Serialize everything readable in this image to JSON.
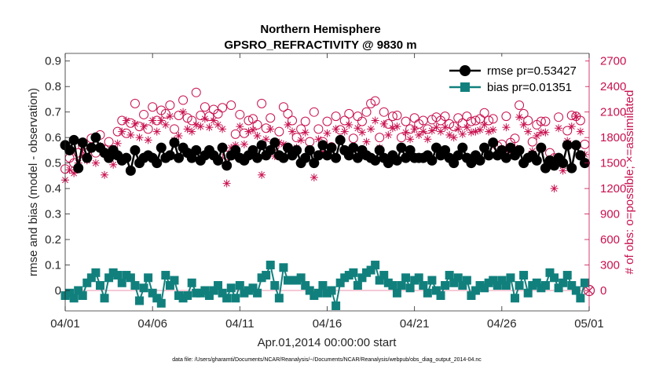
{
  "chart_data": {
    "type": "line",
    "title": "Northern Hemisphere",
    "subtitle": "GPSRO_REFRACTIVITY @ 9830 m",
    "xlabel": "Apr.01,2014 00:00:00 start",
    "ylabel": "rmse and bias (model - observation)",
    "y2label": "# of obs: o=possible; ×=assimilated",
    "footnote": "data file: /Users/gharamti/Documents/NCAR/Reanalysis/~/Documents/NCAR/Reanalysis/webpub/obs_diag_output_2014-04.nc",
    "xlim": [
      0,
      30
    ],
    "ylim": [
      -0.08,
      0.93
    ],
    "y2lim": [
      -240,
      2790
    ],
    "x_ticks": [
      0,
      5,
      10,
      15,
      20,
      25,
      30
    ],
    "x_tick_labels": [
      "04/01",
      "04/06",
      "04/11",
      "04/16",
      "04/21",
      "04/26",
      "05/01"
    ],
    "y_ticks": [
      0,
      0.1,
      0.2,
      0.3,
      0.4,
      0.5,
      0.6,
      0.7,
      0.8,
      0.9
    ],
    "y_tick_labels": [
      "0",
      "0.1",
      "0.2",
      "0.3",
      "0.4",
      "0.5",
      "0.6",
      "0.7",
      "0.8",
      "0.9"
    ],
    "y2_ticks": [
      0,
      300,
      600,
      900,
      1200,
      1500,
      1800,
      2100,
      2400,
      2700
    ],
    "y2_tick_labels": [
      "0",
      "300",
      "600",
      "900",
      "1200",
      "1500",
      "1800",
      "2100",
      "2400",
      "2700"
    ],
    "colors": {
      "rmse": "#000000",
      "bias": "#11807d",
      "obs": "#c8104f",
      "zero_line": "#f0b8c8"
    },
    "series": [
      {
        "name": "rmse",
        "legend": "rmse pr=0.53427",
        "x": [
          0,
          0.25,
          0.5,
          0.75,
          1,
          1.25,
          1.5,
          1.75,
          2,
          2.25,
          2.5,
          2.75,
          3,
          3.25,
          3.5,
          3.75,
          4,
          4.25,
          4.5,
          4.75,
          5,
          5.25,
          5.5,
          5.75,
          6,
          6.25,
          6.5,
          6.75,
          7,
          7.25,
          7.5,
          7.75,
          8,
          8.25,
          8.5,
          8.75,
          9,
          9.25,
          9.5,
          9.75,
          10,
          10.25,
          10.5,
          10.75,
          11,
          11.25,
          11.5,
          11.75,
          12,
          12.25,
          12.5,
          12.75,
          13,
          13.25,
          13.5,
          13.75,
          14,
          14.25,
          14.5,
          14.75,
          15,
          15.25,
          15.5,
          15.75,
          16,
          16.25,
          16.5,
          16.75,
          17,
          17.25,
          17.5,
          17.75,
          18,
          18.25,
          18.5,
          18.75,
          19,
          19.25,
          19.5,
          19.75,
          20,
          20.25,
          20.5,
          20.75,
          21,
          21.25,
          21.5,
          21.75,
          22,
          22.25,
          22.5,
          22.75,
          23,
          23.25,
          23.5,
          23.75,
          24,
          24.25,
          24.5,
          24.75,
          25,
          25.25,
          25.5,
          25.75,
          26,
          26.25,
          26.5,
          26.75,
          27,
          27.25,
          27.5,
          27.75,
          28,
          28.25,
          28.5,
          28.75,
          29,
          29.25,
          29.5,
          29.75
        ],
        "values": [
          0.57,
          0.55,
          0.59,
          0.48,
          0.58,
          0.52,
          0.56,
          0.6,
          0.56,
          0.54,
          0.52,
          0.55,
          0.53,
          0.51,
          0.52,
          0.47,
          0.55,
          0.5,
          0.52,
          0.53,
          0.52,
          0.5,
          0.56,
          0.52,
          0.53,
          0.58,
          0.52,
          0.56,
          0.54,
          0.52,
          0.55,
          0.51,
          0.53,
          0.55,
          0.53,
          0.51,
          0.56,
          0.49,
          0.53,
          0.55,
          0.52,
          0.51,
          0.53,
          0.55,
          0.52,
          0.57,
          0.53,
          0.55,
          0.58,
          0.53,
          0.52,
          0.56,
          0.53,
          0.55,
          0.5,
          0.52,
          0.55,
          0.5,
          0.53,
          0.57,
          0.53,
          0.56,
          0.52,
          0.59,
          0.55,
          0.53,
          0.56,
          0.52,
          0.55,
          0.53,
          0.52,
          0.51,
          0.55,
          0.52,
          0.5,
          0.53,
          0.51,
          0.56,
          0.52,
          0.55,
          0.52,
          0.52,
          0.52,
          0.53,
          0.51,
          0.56,
          0.53,
          0.55,
          0.52,
          0.5,
          0.53,
          0.56,
          0.52,
          0.5,
          0.53,
          0.51,
          0.56,
          0.53,
          0.58,
          0.53,
          0.55,
          0.52,
          0.56,
          0.53,
          0.55,
          0.5,
          0.52,
          0.53,
          0.51,
          0.56,
          0.48,
          0.51,
          0.49,
          0.52,
          0.5,
          0.57,
          0.48,
          0.57,
          0.53,
          0.5
        ]
      },
      {
        "name": "bias",
        "legend": "bias pr=0.01351",
        "x": [
          0,
          0.25,
          0.5,
          0.75,
          1,
          1.25,
          1.5,
          1.75,
          2,
          2.25,
          2.5,
          2.75,
          3,
          3.25,
          3.5,
          3.75,
          4,
          4.25,
          4.5,
          4.75,
          5,
          5.25,
          5.5,
          5.75,
          6,
          6.25,
          6.5,
          6.75,
          7,
          7.25,
          7.5,
          7.75,
          8,
          8.25,
          8.5,
          8.75,
          9,
          9.25,
          9.5,
          9.75,
          10,
          10.25,
          10.5,
          10.75,
          11,
          11.25,
          11.5,
          11.75,
          12,
          12.25,
          12.5,
          12.75,
          13,
          13.25,
          13.5,
          13.75,
          14,
          14.25,
          14.5,
          14.75,
          15,
          15.25,
          15.5,
          15.75,
          16,
          16.25,
          16.5,
          16.75,
          17,
          17.25,
          17.5,
          17.75,
          18,
          18.25,
          18.5,
          18.75,
          19,
          19.25,
          19.5,
          19.75,
          20,
          20.25,
          20.5,
          20.75,
          21,
          21.25,
          21.5,
          21.75,
          22,
          22.25,
          22.5,
          22.75,
          23,
          23.25,
          23.5,
          23.75,
          24,
          24.25,
          24.5,
          24.75,
          25,
          25.25,
          25.5,
          25.75,
          26,
          26.25,
          26.5,
          26.75,
          27,
          27.25,
          27.5,
          27.75,
          28,
          28.25,
          28.5,
          28.75,
          29,
          29.25,
          29.5,
          29.75
        ],
        "values": [
          -0.02,
          -0.01,
          -0.03,
          0.0,
          -0.02,
          0.03,
          0.05,
          0.07,
          0.02,
          -0.03,
          0.05,
          0.07,
          0.06,
          0.03,
          0.06,
          0.05,
          0.02,
          -0.04,
          0.01,
          0.05,
          -0.01,
          -0.03,
          -0.05,
          0.06,
          0.02,
          0.04,
          -0.02,
          -0.03,
          -0.02,
          0.03,
          -0.01,
          -0.01,
          0.0,
          -0.02,
          0.0,
          0.02,
          -0.01,
          -0.03,
          0.01,
          -0.03,
          0.02,
          -0.01,
          0.0,
          0.01,
          -0.01,
          0.05,
          0.06,
          0.1,
          0.02,
          -0.03,
          0.09,
          0.04,
          0.04,
          0.04,
          0.05,
          0.02,
          0.0,
          -0.02,
          -0.01,
          0.02,
          -0.01,
          0.0,
          -0.06,
          0.03,
          0.05,
          0.06,
          0.07,
          0.02,
          0.05,
          0.07,
          0.08,
          0.1,
          0.04,
          0.06,
          0.03,
          0.02,
          -0.01,
          0.02,
          0.05,
          0.01,
          0.04,
          0.05,
          0.02,
          -0.01,
          0.04,
          0.0,
          -0.02,
          0.02,
          0.06,
          0.03,
          0.05,
          0.02,
          0.04,
          -0.02,
          0.0,
          0.02,
          0.01,
          0.03,
          0.04,
          0.02,
          0.04,
          0.02,
          0.05,
          -0.03,
          0.02,
          0.06,
          -0.01,
          0.02,
          0.03,
          0.01,
          0.02,
          0.07,
          0.05,
          0.01,
          0.03,
          0.06,
          0.02,
          0.0,
          -0.03,
          0.03
        ]
      },
      {
        "name": "obs_possible",
        "legend": "o=possible",
        "x": [
          0,
          0.25,
          0.5,
          0.75,
          1,
          1.25,
          1.5,
          1.75,
          2,
          2.25,
          2.5,
          2.75,
          3,
          3.25,
          3.5,
          3.75,
          4,
          4.25,
          4.5,
          4.75,
          5,
          5.25,
          5.5,
          5.75,
          6,
          6.25,
          6.5,
          6.75,
          7,
          7.25,
          7.5,
          7.75,
          8,
          8.25,
          8.5,
          8.75,
          9,
          9.25,
          9.5,
          9.75,
          10,
          10.25,
          10.5,
          10.75,
          11,
          11.25,
          11.5,
          11.75,
          12,
          12.25,
          12.5,
          12.75,
          13,
          13.25,
          13.5,
          13.75,
          14,
          14.25,
          14.5,
          14.75,
          15,
          15.25,
          15.5,
          15.75,
          16,
          16.25,
          16.5,
          16.75,
          17,
          17.25,
          17.5,
          17.75,
          18,
          18.25,
          18.5,
          18.75,
          19,
          19.25,
          19.5,
          19.75,
          20,
          20.25,
          20.5,
          20.75,
          21,
          21.25,
          21.5,
          21.75,
          22,
          22.25,
          22.5,
          22.75,
          23,
          23.25,
          23.5,
          23.75,
          24,
          24.25,
          24.5,
          24.75,
          25,
          25.25,
          25.5,
          25.75,
          26,
          26.25,
          26.5,
          26.75,
          27,
          27.25,
          27.5,
          27.75,
          28,
          28.25,
          28.5,
          28.75,
          29,
          29.25,
          29.5,
          29.75
        ],
        "values": [
          1430,
          1560,
          1500,
          1620,
          1700,
          1650,
          1790,
          1620,
          1830,
          1660,
          1750,
          1600,
          1870,
          2000,
          1850,
          1970,
          2200,
          1930,
          2070,
          1900,
          2160,
          2000,
          2120,
          2080,
          2180,
          1900,
          2060,
          2240,
          2030,
          2000,
          2330,
          2060,
          2160,
          2050,
          2130,
          2080,
          2150,
          1590,
          2180,
          1840,
          2070,
          1850,
          2000,
          2020,
          1950,
          2200,
          1910,
          2030,
          1700,
          1870,
          2160,
          2080,
          2000,
          1800,
          1900,
          1990,
          1750,
          2100,
          1900,
          1750,
          1990,
          1690,
          2050,
          1890,
          2000,
          2080,
          1790,
          2050,
          1990,
          2100,
          2200,
          2230,
          1800,
          2100,
          1960,
          2050,
          2060,
          1800,
          1990,
          1900,
          2030,
          1960,
          2000,
          1900,
          2010,
          2040,
          2000,
          2050,
          1960,
          1930,
          2030,
          1970,
          2050,
          1990,
          2000,
          2020,
          2090,
          2000,
          2020,
          1700,
          1720,
          2050,
          1740,
          1790,
          2180,
          2080,
          2000,
          1750,
          1950,
          1990,
          1990,
          1620,
          1560,
          2040,
          1500,
          1880,
          2060,
          2050,
          2000,
          1720
        ]
      },
      {
        "name": "obs_assimilated",
        "legend": "×=assimilated",
        "x": [
          0,
          0.25,
          0.5,
          0.75,
          1,
          1.25,
          1.5,
          1.75,
          2,
          2.25,
          2.5,
          2.75,
          3,
          3.25,
          3.5,
          3.75,
          4,
          4.25,
          4.5,
          4.75,
          5,
          5.25,
          5.5,
          5.75,
          6,
          6.25,
          6.5,
          6.75,
          7,
          7.25,
          7.5,
          7.75,
          8,
          8.25,
          8.5,
          8.75,
          9,
          9.25,
          9.5,
          9.75,
          10,
          10.25,
          10.5,
          10.75,
          11,
          11.25,
          11.5,
          11.75,
          12,
          12.25,
          12.5,
          12.75,
          13,
          13.25,
          13.5,
          13.75,
          14,
          14.25,
          14.5,
          14.75,
          15,
          15.25,
          15.5,
          15.75,
          16,
          16.25,
          16.5,
          16.75,
          17,
          17.25,
          17.5,
          17.75,
          18,
          18.25,
          18.5,
          18.75,
          19,
          19.25,
          19.5,
          19.75,
          20,
          20.25,
          20.5,
          20.75,
          21,
          21.25,
          21.5,
          21.75,
          22,
          22.25,
          22.5,
          22.75,
          23,
          23.25,
          23.5,
          23.75,
          24,
          24.25,
          24.5,
          24.75,
          25,
          25.25,
          25.5,
          25.75,
          26,
          26.25,
          26.5,
          26.75,
          27,
          27.25,
          27.5,
          27.75,
          28,
          28.25,
          28.5,
          28.75,
          29,
          29.25,
          29.5,
          29.75
        ],
        "values": [
          1300,
          1420,
          1380,
          1500,
          1580,
          1530,
          1660,
          1500,
          1700,
          1360,
          1620,
          1480,
          1730,
          1870,
          2000,
          1830,
          1960,
          1800,
          1930,
          1770,
          2000,
          1870,
          2000,
          1950,
          2050,
          1770,
          1820,
          2100,
          1900,
          1870,
          1950,
          1930,
          2020,
          1920,
          2000,
          1950,
          1900,
          1260,
          1680,
          1710,
          1930,
          1720,
          1870,
          1890,
          1820,
          1360,
          1780,
          1900,
          1580,
          1740,
          1720,
          1950,
          1870,
          1680,
          1770,
          1860,
          1630,
          1330,
          1780,
          1630,
          1850,
          1580,
          1900,
          1770,
          1870,
          1950,
          1670,
          1910,
          1860,
          1750,
          1900,
          2000,
          1680,
          1960,
          1830,
          1910,
          1930,
          1690,
          1860,
          1780,
          1900,
          1830,
          1870,
          1780,
          1880,
          1920,
          1870,
          1920,
          1830,
          1800,
          1900,
          1840,
          1920,
          1860,
          1870,
          1890,
          1950,
          1870,
          1890,
          1590,
          1610,
          1920,
          1630,
          1680,
          2040,
          1950,
          1870,
          1640,
          1820,
          1860,
          1860,
          1510,
          1200,
          1910,
          1410,
          1760,
          1930,
          2050,
          1870,
          1600
        ]
      }
    ],
    "obs_endpoint_marker": {
      "x": 30,
      "value": 0,
      "symbols": [
        "o",
        "×"
      ]
    }
  }
}
